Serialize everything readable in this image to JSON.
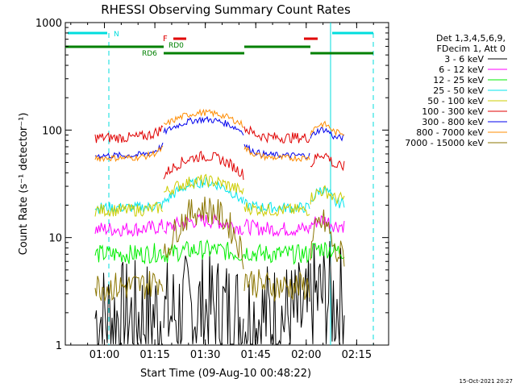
{
  "chart_data": {
    "type": "line",
    "title": "RHESSI Observing Summary Count Rates",
    "xlabel": "Start Time (09-Aug-10 00:48:22)",
    "ylabel": "Count Rate (s⁻¹ detector⁻¹)",
    "y_scale": "log",
    "ylim": [
      1,
      1000
    ],
    "xlim": [
      "00:48",
      "02:24"
    ],
    "x_ticks": [
      "01:00",
      "01:15",
      "01:30",
      "01:45",
      "02:00",
      "02:15"
    ],
    "y_ticks": [
      "1",
      "10",
      "100",
      "1000"
    ],
    "legend_header": [
      "Det 1,3,4,5,6,9,",
      "FDecim 1, Att 0"
    ],
    "legend_position": "right",
    "date_stamp": "15-Oct-2021 20:27",
    "flags": {
      "N": {
        "label": "N",
        "color": "#00dddd"
      },
      "F": {
        "label": "F",
        "color": "#e00000"
      },
      "RD0": {
        "label": "RD0",
        "color": "#008000"
      },
      "RD6": {
        "label": "RD6",
        "color": "#008000"
      }
    },
    "series": [
      {
        "name": "3 - 6 keV",
        "color": "#000000"
      },
      {
        "name": "6 - 12 keV",
        "color": "#ff00ff"
      },
      {
        "name": "12 - 25 keV",
        "color": "#00ee00"
      },
      {
        "name": "25 - 50 keV",
        "color": "#00e5ee"
      },
      {
        "name": "50 - 100 keV",
        "color": "#cccc00"
      },
      {
        "name": "100 - 300 keV",
        "color": "#e00000"
      },
      {
        "name": "300 - 800 keV",
        "color": "#0000ee"
      },
      {
        "name": "800 - 7000 keV",
        "color": "#ff8c00"
      },
      {
        "name": "7000 - 15000 keV",
        "color": "#8b7500"
      }
    ]
  }
}
